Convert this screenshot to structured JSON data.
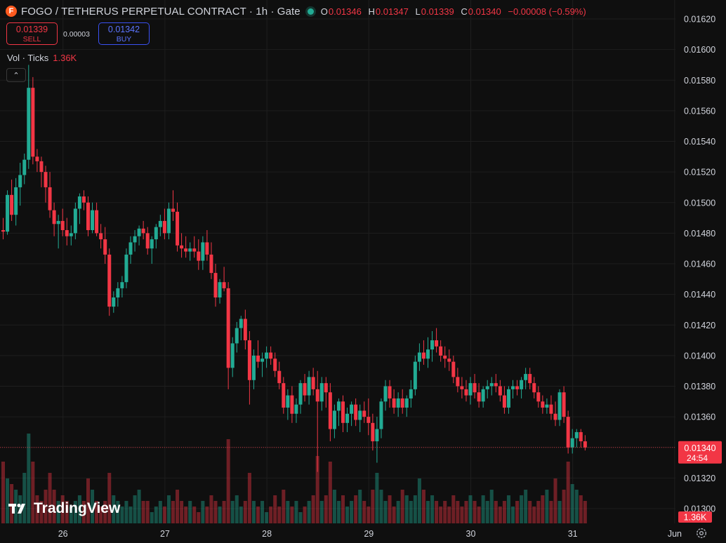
{
  "header": {
    "logo_letter": "F",
    "title": "FOGO / TETHERUS PERPETUAL CONTRACT · 1h · Gate",
    "ohlc": [
      {
        "key": "O",
        "value": "0.01346"
      },
      {
        "key": "H",
        "value": "0.01347"
      },
      {
        "key": "L",
        "value": "0.01339"
      },
      {
        "key": "C",
        "value": "0.01340"
      }
    ],
    "change": "−0.00008 (−0.59%)"
  },
  "trade": {
    "sell_price": "0.01339",
    "sell_label": "SELL",
    "spread": "0.00003",
    "buy_price": "0.01342",
    "buy_label": "BUY"
  },
  "volume_legend": {
    "label": "Vol · Ticks",
    "value": "1.36K"
  },
  "collapse_icon": "chevron-up-icon",
  "branding": "TradingView",
  "colors": {
    "up": "#22ab94",
    "down": "#f23645",
    "background": "#0f0f0f",
    "grid": "#1e1e1e"
  },
  "chart_data": {
    "type": "candlestick",
    "y_axis": {
      "ticks": [
        "0.01620",
        "0.01600",
        "0.01580",
        "0.01560",
        "0.01540",
        "0.01520",
        "0.01500",
        "0.01480",
        "0.01460",
        "0.01440",
        "0.01420",
        "0.01400",
        "0.01380",
        "0.01360",
        "0.01340",
        "0.01320",
        "0.01300"
      ],
      "range": [
        0.01294,
        0.01625
      ]
    },
    "x_axis": {
      "labels": [
        "26",
        "27",
        "28",
        "29",
        "30",
        "31",
        "Jun"
      ],
      "label_bar_index": [
        14,
        38,
        62,
        86,
        110,
        134,
        158
      ]
    },
    "current_price": {
      "value": "0.01340",
      "countdown": "24:54"
    },
    "current_volume": "1.36K",
    "bars_note": "hourly OHLC estimated from the chart",
    "bars": [
      [
        0.01482,
        0.0149,
        0.01476,
        0.01481
      ],
      [
        0.01481,
        0.01508,
        0.01479,
        0.01505
      ],
      [
        0.01505,
        0.01515,
        0.01488,
        0.01492
      ],
      [
        0.01492,
        0.01516,
        0.01485,
        0.0151
      ],
      [
        0.0151,
        0.01526,
        0.01498,
        0.01518
      ],
      [
        0.01518,
        0.01532,
        0.01512,
        0.01528
      ],
      [
        0.01528,
        0.0159,
        0.01522,
        0.01575
      ],
      [
        0.01575,
        0.01582,
        0.01525,
        0.0153
      ],
      [
        0.0153,
        0.01535,
        0.0152,
        0.01527
      ],
      [
        0.01527,
        0.0153,
        0.0151,
        0.0152
      ],
      [
        0.0152,
        0.01524,
        0.015,
        0.0151
      ],
      [
        0.0151,
        0.0152,
        0.0149,
        0.01495
      ],
      [
        0.01495,
        0.015,
        0.01478,
        0.01486
      ],
      [
        0.01486,
        0.01492,
        0.0147,
        0.01488
      ],
      [
        0.01488,
        0.01496,
        0.01478,
        0.01482
      ],
      [
        0.01482,
        0.0149,
        0.01472,
        0.01478
      ],
      [
        0.01478,
        0.01485,
        0.01472,
        0.0148
      ],
      [
        0.0148,
        0.015,
        0.01476,
        0.01496
      ],
      [
        0.01496,
        0.01506,
        0.01486,
        0.01504
      ],
      [
        0.01504,
        0.01508,
        0.01495,
        0.015
      ],
      [
        0.015,
        0.01504,
        0.01478,
        0.01482
      ],
      [
        0.01482,
        0.015,
        0.0148,
        0.01495
      ],
      [
        0.01495,
        0.015,
        0.01478,
        0.0148
      ],
      [
        0.0148,
        0.01486,
        0.0147,
        0.01476
      ],
      [
        0.01476,
        0.01484,
        0.0146,
        0.01466
      ],
      [
        0.01466,
        0.0147,
        0.01426,
        0.01432
      ],
      [
        0.01432,
        0.01442,
        0.01428,
        0.01438
      ],
      [
        0.01438,
        0.01448,
        0.01432,
        0.01444
      ],
      [
        0.01444,
        0.01452,
        0.01438,
        0.01448
      ],
      [
        0.01448,
        0.0147,
        0.01444,
        0.01466
      ],
      [
        0.01466,
        0.01478,
        0.0146,
        0.01474
      ],
      [
        0.01474,
        0.01482,
        0.01468,
        0.01478
      ],
      [
        0.01478,
        0.01485,
        0.01472,
        0.01483
      ],
      [
        0.01483,
        0.01488,
        0.01476,
        0.0148
      ],
      [
        0.0148,
        0.01484,
        0.01466,
        0.0147
      ],
      [
        0.0147,
        0.01478,
        0.0146,
        0.01476
      ],
      [
        0.01476,
        0.01486,
        0.0147,
        0.01484
      ],
      [
        0.01484,
        0.01492,
        0.01478,
        0.01488
      ],
      [
        0.01488,
        0.01496,
        0.01476,
        0.0148
      ],
      [
        0.0148,
        0.015,
        0.01476,
        0.01496
      ],
      [
        0.01496,
        0.01508,
        0.01488,
        0.01494
      ],
      [
        0.01494,
        0.015,
        0.01468,
        0.01472
      ],
      [
        0.01472,
        0.0148,
        0.01464,
        0.0147
      ],
      [
        0.0147,
        0.01478,
        0.01464,
        0.01468
      ],
      [
        0.01468,
        0.01474,
        0.01462,
        0.0147
      ],
      [
        0.0147,
        0.01478,
        0.01464,
        0.01468
      ],
      [
        0.01468,
        0.01476,
        0.01456,
        0.01462
      ],
      [
        0.01462,
        0.01478,
        0.01456,
        0.01474
      ],
      [
        0.01474,
        0.01482,
        0.01462,
        0.01466
      ],
      [
        0.01466,
        0.01474,
        0.0145,
        0.01454
      ],
      [
        0.01454,
        0.0146,
        0.01432,
        0.01438
      ],
      [
        0.01438,
        0.0145,
        0.01434,
        0.01448
      ],
      [
        0.01448,
        0.01458,
        0.01442,
        0.01444
      ],
      [
        0.01444,
        0.01448,
        0.01378,
        0.01392
      ],
      [
        0.01392,
        0.01412,
        0.01386,
        0.01408
      ],
      [
        0.01408,
        0.01422,
        0.01402,
        0.01418
      ],
      [
        0.01418,
        0.01426,
        0.0141,
        0.01424
      ],
      [
        0.01424,
        0.0143,
        0.01404,
        0.0141
      ],
      [
        0.0141,
        0.01416,
        0.01368,
        0.01384
      ],
      [
        0.01384,
        0.01404,
        0.01378,
        0.014
      ],
      [
        0.014,
        0.0141,
        0.01392,
        0.01396
      ],
      [
        0.01396,
        0.01402,
        0.01386,
        0.01398
      ],
      [
        0.01398,
        0.01406,
        0.01392,
        0.01402
      ],
      [
        0.01402,
        0.01406,
        0.01394,
        0.01398
      ],
      [
        0.01398,
        0.01402,
        0.01386,
        0.0139
      ],
      [
        0.0139,
        0.01396,
        0.01378,
        0.01382
      ],
      [
        0.01382,
        0.01386,
        0.01362,
        0.01366
      ],
      [
        0.01366,
        0.01378,
        0.01358,
        0.01374
      ],
      [
        0.01374,
        0.0138,
        0.01356,
        0.01362
      ],
      [
        0.01362,
        0.01372,
        0.01356,
        0.01368
      ],
      [
        0.01368,
        0.01384,
        0.01362,
        0.01382
      ],
      [
        0.01382,
        0.01388,
        0.0137,
        0.01374
      ],
      [
        0.01374,
        0.0139,
        0.01368,
        0.01386
      ],
      [
        0.01386,
        0.01392,
        0.01374,
        0.01378
      ],
      [
        0.01378,
        0.0139,
        0.01324,
        0.0137
      ],
      [
        0.0137,
        0.01386,
        0.01364,
        0.01382
      ],
      [
        0.01382,
        0.01386,
        0.01366,
        0.01376
      ],
      [
        0.01376,
        0.01382,
        0.01344,
        0.01352
      ],
      [
        0.01352,
        0.01368,
        0.01346,
        0.01364
      ],
      [
        0.01364,
        0.01372,
        0.01354,
        0.0137
      ],
      [
        0.0137,
        0.01374,
        0.0135,
        0.01356
      ],
      [
        0.01356,
        0.01366,
        0.0135,
        0.01362
      ],
      [
        0.01362,
        0.0137,
        0.01354,
        0.01368
      ],
      [
        0.01368,
        0.01372,
        0.01354,
        0.01358
      ],
      [
        0.01358,
        0.01368,
        0.0135,
        0.01364
      ],
      [
        0.01364,
        0.0137,
        0.01356,
        0.0136
      ],
      [
        0.0136,
        0.01372,
        0.01348,
        0.01356
      ],
      [
        0.01356,
        0.01362,
        0.01338,
        0.01344
      ],
      [
        0.01344,
        0.0136,
        0.0133,
        0.01352
      ],
      [
        0.01352,
        0.01372,
        0.01346,
        0.0137
      ],
      [
        0.0137,
        0.01384,
        0.01364,
        0.0138
      ],
      [
        0.0138,
        0.01384,
        0.01366,
        0.01372
      ],
      [
        0.01372,
        0.01378,
        0.01362,
        0.01366
      ],
      [
        0.01366,
        0.01376,
        0.0136,
        0.01372
      ],
      [
        0.01372,
        0.01378,
        0.01362,
        0.01366
      ],
      [
        0.01366,
        0.01374,
        0.0136,
        0.01372
      ],
      [
        0.01372,
        0.01384,
        0.01366,
        0.01378
      ],
      [
        0.01378,
        0.014,
        0.01374,
        0.01396
      ],
      [
        0.01396,
        0.01408,
        0.0139,
        0.01402
      ],
      [
        0.01402,
        0.0141,
        0.01394,
        0.01398
      ],
      [
        0.01398,
        0.01412,
        0.01392,
        0.01404
      ],
      [
        0.01404,
        0.01416,
        0.01396,
        0.0141
      ],
      [
        0.0141,
        0.01418,
        0.01402,
        0.01406
      ],
      [
        0.01406,
        0.0141,
        0.01396,
        0.014
      ],
      [
        0.014,
        0.01406,
        0.01392,
        0.01398
      ],
      [
        0.01398,
        0.01404,
        0.0139,
        0.01396
      ],
      [
        0.01396,
        0.014,
        0.01382,
        0.01386
      ],
      [
        0.01386,
        0.01392,
        0.01376,
        0.0138
      ],
      [
        0.0138,
        0.01386,
        0.01372,
        0.01378
      ],
      [
        0.01378,
        0.01384,
        0.0137,
        0.01374
      ],
      [
        0.01374,
        0.01386,
        0.01368,
        0.01382
      ],
      [
        0.01382,
        0.01388,
        0.01372,
        0.01376
      ],
      [
        0.01376,
        0.01382,
        0.01366,
        0.0137
      ],
      [
        0.0137,
        0.0138,
        0.01366,
        0.01378
      ],
      [
        0.01378,
        0.01384,
        0.01372,
        0.0138
      ],
      [
        0.0138,
        0.01386,
        0.01374,
        0.01382
      ],
      [
        0.01382,
        0.01388,
        0.01376,
        0.0138
      ],
      [
        0.0138,
        0.01384,
        0.0137,
        0.01374
      ],
      [
        0.01374,
        0.0138,
        0.01362,
        0.01366
      ],
      [
        0.01366,
        0.0138,
        0.01362,
        0.01378
      ],
      [
        0.01378,
        0.01384,
        0.01372,
        0.0138
      ],
      [
        0.0138,
        0.01384,
        0.01374,
        0.01378
      ],
      [
        0.01378,
        0.01386,
        0.01372,
        0.01384
      ],
      [
        0.01384,
        0.01392,
        0.01378,
        0.01388
      ],
      [
        0.01388,
        0.01392,
        0.01378,
        0.01382
      ],
      [
        0.01382,
        0.01386,
        0.01372,
        0.01376
      ],
      [
        0.01376,
        0.0138,
        0.01366,
        0.0137
      ],
      [
        0.0137,
        0.01374,
        0.01362,
        0.01366
      ],
      [
        0.01366,
        0.01372,
        0.01362,
        0.01368
      ],
      [
        0.01368,
        0.01374,
        0.01358,
        0.01362
      ],
      [
        0.01362,
        0.0137,
        0.01354,
        0.01358
      ],
      [
        0.01358,
        0.01378,
        0.01354,
        0.01376
      ],
      [
        0.01376,
        0.0138,
        0.01356,
        0.0136
      ],
      [
        0.0136,
        0.01364,
        0.01336,
        0.0134
      ],
      [
        0.0134,
        0.01352,
        0.01336,
        0.01346
      ],
      [
        0.01346,
        0.01352,
        0.0134,
        0.0135
      ],
      [
        0.0135,
        0.01352,
        0.0134,
        0.01344
      ],
      [
        0.01344,
        0.01348,
        0.01338,
        0.0134
      ]
    ],
    "volume_fraction": [
      0.55,
      0.4,
      0.35,
      0.3,
      0.25,
      0.45,
      0.8,
      0.55,
      0.25,
      0.2,
      0.3,
      0.45,
      0.3,
      0.2,
      0.25,
      0.2,
      0.15,
      0.2,
      0.25,
      0.2,
      0.4,
      0.3,
      0.2,
      0.15,
      0.2,
      0.45,
      0.25,
      0.2,
      0.15,
      0.2,
      0.15,
      0.25,
      0.3,
      0.2,
      0.2,
      0.1,
      0.15,
      0.2,
      0.15,
      0.25,
      0.2,
      0.3,
      0.2,
      0.15,
      0.2,
      0.15,
      0.1,
      0.2,
      0.15,
      0.25,
      0.2,
      0.15,
      0.2,
      0.75,
      0.2,
      0.25,
      0.15,
      0.2,
      0.45,
      0.2,
      0.15,
      0.2,
      0.1,
      0.15,
      0.25,
      0.15,
      0.3,
      0.2,
      0.15,
      0.2,
      0.1,
      0.15,
      0.2,
      0.25,
      0.6,
      0.2,
      0.25,
      0.55,
      0.3,
      0.2,
      0.25,
      0.15,
      0.2,
      0.25,
      0.3,
      0.2,
      0.15,
      0.3,
      0.45,
      0.3,
      0.2,
      0.25,
      0.15,
      0.2,
      0.3,
      0.25,
      0.2,
      0.25,
      0.4,
      0.3,
      0.2,
      0.25,
      0.2,
      0.15,
      0.2,
      0.15,
      0.25,
      0.2,
      0.15,
      0.2,
      0.25,
      0.2,
      0.15,
      0.25,
      0.2,
      0.3,
      0.2,
      0.15,
      0.2,
      0.25,
      0.15,
      0.2,
      0.25,
      0.3,
      0.2,
      0.15,
      0.2,
      0.25,
      0.3,
      0.2,
      0.4,
      0.2,
      0.3,
      0.55,
      0.35,
      0.3,
      0.25,
      0.2
    ]
  }
}
